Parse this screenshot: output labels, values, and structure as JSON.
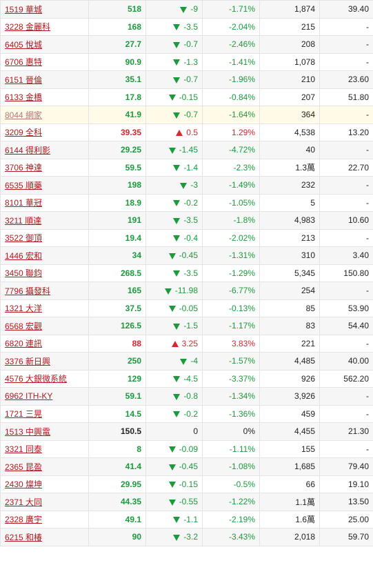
{
  "colors": {
    "down": "#1a9b3c",
    "up": "#d9262c",
    "link": "#b3191e"
  },
  "rows": [
    {
      "code_name": "1519 華城",
      "price": "518",
      "change": "-9",
      "pct": "-1.71%",
      "volume": "1,874",
      "pe": "39.40",
      "dir": "down"
    },
    {
      "code_name": "3228 金麗科",
      "price": "168",
      "change": "-3.5",
      "pct": "-2.04%",
      "volume": "215",
      "pe": "-",
      "dir": "down"
    },
    {
      "code_name": "6405 悅城",
      "price": "27.7",
      "change": "-0.7",
      "pct": "-2.46%",
      "volume": "208",
      "pe": "-",
      "dir": "down"
    },
    {
      "code_name": "6706 惠特",
      "price": "90.9",
      "change": "-1.3",
      "pct": "-1.41%",
      "volume": "1,078",
      "pe": "-",
      "dir": "down"
    },
    {
      "code_name": "6151 晉倫",
      "price": "35.1",
      "change": "-0.7",
      "pct": "-1.96%",
      "volume": "210",
      "pe": "23.60",
      "dir": "down"
    },
    {
      "code_name": "6133 金橋",
      "price": "17.8",
      "change": "-0.15",
      "pct": "-0.84%",
      "volume": "207",
      "pe": "51.80",
      "dir": "down"
    },
    {
      "code_name": "8044 網家",
      "price": "41.9",
      "change": "-0.7",
      "pct": "-1.64%",
      "volume": "364",
      "pe": "-",
      "dir": "down",
      "highlight": true,
      "visited": true
    },
    {
      "code_name": "3209 全科",
      "price": "39.35",
      "change": "0.5",
      "pct": "1.29%",
      "volume": "4,538",
      "pe": "13.20",
      "dir": "up"
    },
    {
      "code_name": "6144 得利影",
      "price": "29.25",
      "change": "-1.45",
      "pct": "-4.72%",
      "volume": "40",
      "pe": "-",
      "dir": "down"
    },
    {
      "code_name": "3706 神達",
      "price": "59.5",
      "change": "-1.4",
      "pct": "-2.3%",
      "volume": "1.3萬",
      "pe": "22.70",
      "dir": "down"
    },
    {
      "code_name": "6535 順藥",
      "price": "198",
      "change": "-3",
      "pct": "-1.49%",
      "volume": "232",
      "pe": "-",
      "dir": "down"
    },
    {
      "code_name": "8101 華冠",
      "price": "18.9",
      "change": "-0.2",
      "pct": "-1.05%",
      "volume": "5",
      "pe": "-",
      "dir": "down"
    },
    {
      "code_name": "3211 順達",
      "price": "191",
      "change": "-3.5",
      "pct": "-1.8%",
      "volume": "4,983",
      "pe": "10.60",
      "dir": "down"
    },
    {
      "code_name": "3522 御頂",
      "price": "19.4",
      "change": "-0.4",
      "pct": "-2.02%",
      "volume": "213",
      "pe": "-",
      "dir": "down"
    },
    {
      "code_name": "1446 宏和",
      "price": "34",
      "change": "-0.45",
      "pct": "-1.31%",
      "volume": "310",
      "pe": "3.40",
      "dir": "down"
    },
    {
      "code_name": "3450 聯鈞",
      "price": "268.5",
      "change": "-3.5",
      "pct": "-1.29%",
      "volume": "5,345",
      "pe": "150.80",
      "dir": "down"
    },
    {
      "code_name": "7796 攝發科",
      "price": "165",
      "change": "-11.98",
      "pct": "-6.77%",
      "volume": "254",
      "pe": "-",
      "dir": "down"
    },
    {
      "code_name": "1321 大洋",
      "price": "37.5",
      "change": "-0.05",
      "pct": "-0.13%",
      "volume": "85",
      "pe": "53.90",
      "dir": "down"
    },
    {
      "code_name": "6568 宏觀",
      "price": "126.5",
      "change": "-1.5",
      "pct": "-1.17%",
      "volume": "83",
      "pe": "54.40",
      "dir": "down"
    },
    {
      "code_name": "6820 連訊",
      "price": "88",
      "change": "3.25",
      "pct": "3.83%",
      "volume": "221",
      "pe": "-",
      "dir": "up"
    },
    {
      "code_name": "3376 新日興",
      "price": "250",
      "change": "-4",
      "pct": "-1.57%",
      "volume": "4,485",
      "pe": "40.00",
      "dir": "down"
    },
    {
      "code_name": "4576 大銀微系統",
      "price": "129",
      "change": "-4.5",
      "pct": "-3.37%",
      "volume": "926",
      "pe": "562.20",
      "dir": "down"
    },
    {
      "code_name": "6962 ITH-KY",
      "price": "59.1",
      "change": "-0.8",
      "pct": "-1.34%",
      "volume": "3,926",
      "pe": "-",
      "dir": "down"
    },
    {
      "code_name": "1721 三晃",
      "price": "14.5",
      "change": "-0.2",
      "pct": "-1.36%",
      "volume": "459",
      "pe": "-",
      "dir": "down"
    },
    {
      "code_name": "1513 中興電",
      "price": "150.5",
      "change": "0",
      "pct": "0%",
      "volume": "4,455",
      "pe": "21.30",
      "dir": "flat"
    },
    {
      "code_name": "3321 同泰",
      "price": "8",
      "change": "-0.09",
      "pct": "-1.11%",
      "volume": "155",
      "pe": "-",
      "dir": "down"
    },
    {
      "code_name": "2365 昆盈",
      "price": "41.4",
      "change": "-0.45",
      "pct": "-1.08%",
      "volume": "1,685",
      "pe": "79.40",
      "dir": "down"
    },
    {
      "code_name": "2430 燦坤",
      "price": "29.95",
      "change": "-0.15",
      "pct": "-0.5%",
      "volume": "66",
      "pe": "19.10",
      "dir": "down"
    },
    {
      "code_name": "2371 大同",
      "price": "44.35",
      "change": "-0.55",
      "pct": "-1.22%",
      "volume": "1.1萬",
      "pe": "13.50",
      "dir": "down"
    },
    {
      "code_name": "2328 廣宇",
      "price": "49.1",
      "change": "-1.1",
      "pct": "-2.19%",
      "volume": "1.6萬",
      "pe": "25.00",
      "dir": "down"
    },
    {
      "code_name": "6215 和椿",
      "price": "90",
      "change": "-3.2",
      "pct": "-3.43%",
      "volume": "2,018",
      "pe": "59.70",
      "dir": "down"
    }
  ]
}
